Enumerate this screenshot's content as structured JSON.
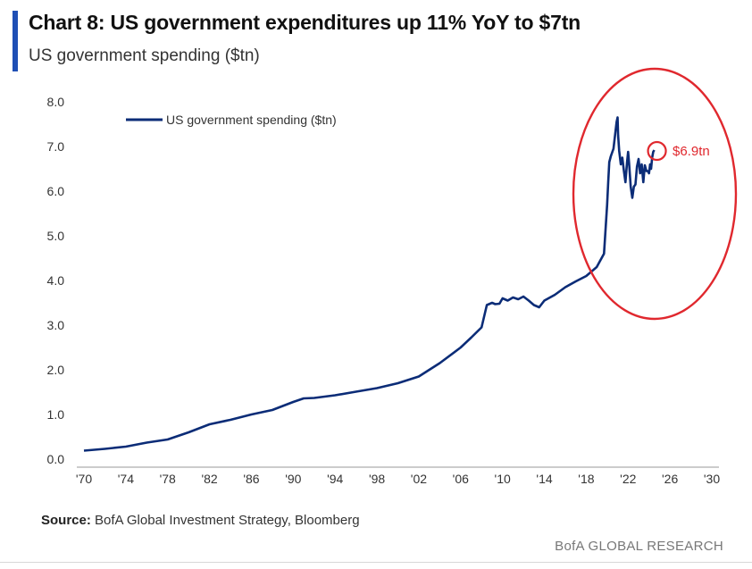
{
  "header": {
    "title": "Chart 8: US government expenditures up 11% YoY to $7tn",
    "subtitle": "US government spending ($tn)",
    "accent_color": "#1f4fb5"
  },
  "footer": {
    "source_label": "Source:",
    "source_text": " BofA Global Investment Strategy, Bloomberg",
    "brand": "BofA GLOBAL RESEARCH"
  },
  "chart_data": {
    "type": "line",
    "title": "Chart 8: US government expenditures up 11% YoY to $7tn",
    "subtitle": "US government spending ($tn)",
    "xlabel": "",
    "ylabel": "",
    "xlim": [
      1970,
      2030
    ],
    "ylim": [
      0,
      8
    ],
    "x_ticks": [
      1970,
      1974,
      1978,
      1982,
      1986,
      1990,
      1994,
      1998,
      2002,
      2006,
      2010,
      2014,
      2018,
      2022,
      2026,
      2030
    ],
    "x_tick_labels": [
      "'70",
      "'74",
      "'78",
      "'82",
      "'86",
      "'90",
      "'94",
      "'98",
      "'02",
      "'06",
      "'10",
      "'14",
      "'18",
      "'22",
      "'26",
      "'30"
    ],
    "y_ticks": [
      0,
      1,
      2,
      3,
      4,
      5,
      6,
      7,
      8
    ],
    "y_tick_labels": [
      "0.0",
      "1.0",
      "2.0",
      "3.0",
      "4.0",
      "5.0",
      "6.0",
      "7.0",
      "8.0"
    ],
    "grid": false,
    "legend_position": "top-left",
    "series": [
      {
        "name": "US government spending ($tn)",
        "color": "#0b2c77",
        "x": [
          1970,
          1972,
          1974,
          1976,
          1978,
          1980,
          1982,
          1984,
          1986,
          1988,
          1990,
          1991,
          1992,
          1994,
          1996,
          1998,
          2000,
          2002,
          2004,
          2006,
          2007,
          2008,
          2008.5,
          2009,
          2009.3,
          2009.7,
          2010,
          2010.5,
          2011,
          2011.5,
          2012,
          2012.5,
          2013,
          2013.5,
          2014,
          2015,
          2016,
          2017,
          2018,
          2019,
          2019.7,
          2020.0,
          2020.1,
          2020.2,
          2020.35,
          2020.6,
          2020.9,
          2021.0,
          2021.05,
          2021.15,
          2021.3,
          2021.45,
          2021.6,
          2021.75,
          2021.9,
          2022.0,
          2022.1,
          2022.25,
          2022.4,
          2022.55,
          2022.7,
          2022.85,
          2023.0,
          2023.15,
          2023.3,
          2023.45,
          2023.6,
          2023.75,
          2023.9,
          2024.0,
          2024.1,
          2024.2,
          2024.3,
          2024.4,
          2024.5
        ],
        "values": [
          0.19,
          0.23,
          0.28,
          0.37,
          0.44,
          0.6,
          0.78,
          0.88,
          1.0,
          1.1,
          1.28,
          1.36,
          1.37,
          1.43,
          1.51,
          1.59,
          1.7,
          1.85,
          2.15,
          2.5,
          2.72,
          2.95,
          3.45,
          3.5,
          3.47,
          3.48,
          3.6,
          3.55,
          3.62,
          3.58,
          3.64,
          3.55,
          3.45,
          3.4,
          3.55,
          3.68,
          3.85,
          3.98,
          4.1,
          4.3,
          4.6,
          5.7,
          6.2,
          6.65,
          6.78,
          6.95,
          7.55,
          7.65,
          7.25,
          6.9,
          6.6,
          6.75,
          6.45,
          6.2,
          6.65,
          6.88,
          6.62,
          6.1,
          5.85,
          6.1,
          6.15,
          6.55,
          6.72,
          6.4,
          6.6,
          6.2,
          6.58,
          6.45,
          6.45,
          6.4,
          6.6,
          6.5,
          6.75,
          6.88,
          6.92
        ]
      }
    ],
    "annotations": [
      {
        "text": "$6.9tn",
        "x": 2024.5,
        "y": 6.9,
        "color": "#e0282e"
      }
    ]
  }
}
